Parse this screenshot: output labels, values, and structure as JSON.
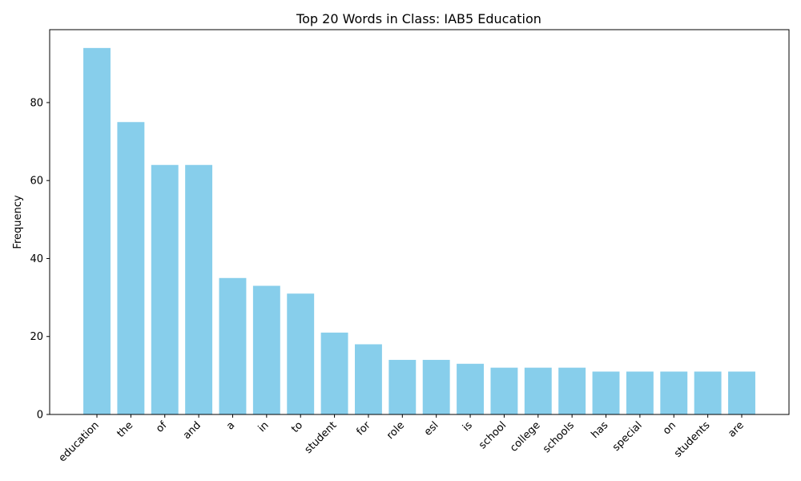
{
  "chart_data": {
    "type": "bar",
    "title": "Top 20 Words in Class: IAB5 Education",
    "xlabel": "",
    "ylabel": "Frequency",
    "categories": [
      "education",
      "the",
      "of",
      "and",
      "a",
      "in",
      "to",
      "student",
      "for",
      "role",
      "esl",
      "is",
      "school",
      "college",
      "schools",
      "has",
      "special",
      "on",
      "students",
      "are"
    ],
    "values": [
      94,
      75,
      64,
      64,
      35,
      33,
      31,
      21,
      18,
      14,
      14,
      13,
      12,
      12,
      12,
      11,
      11,
      11,
      11,
      11
    ],
    "yticks": [
      0,
      20,
      40,
      60,
      80
    ],
    "ylim": [
      0,
      98.7
    ],
    "grid": false,
    "bar_color": "#87CEEB",
    "x_tick_rotation": 45
  }
}
